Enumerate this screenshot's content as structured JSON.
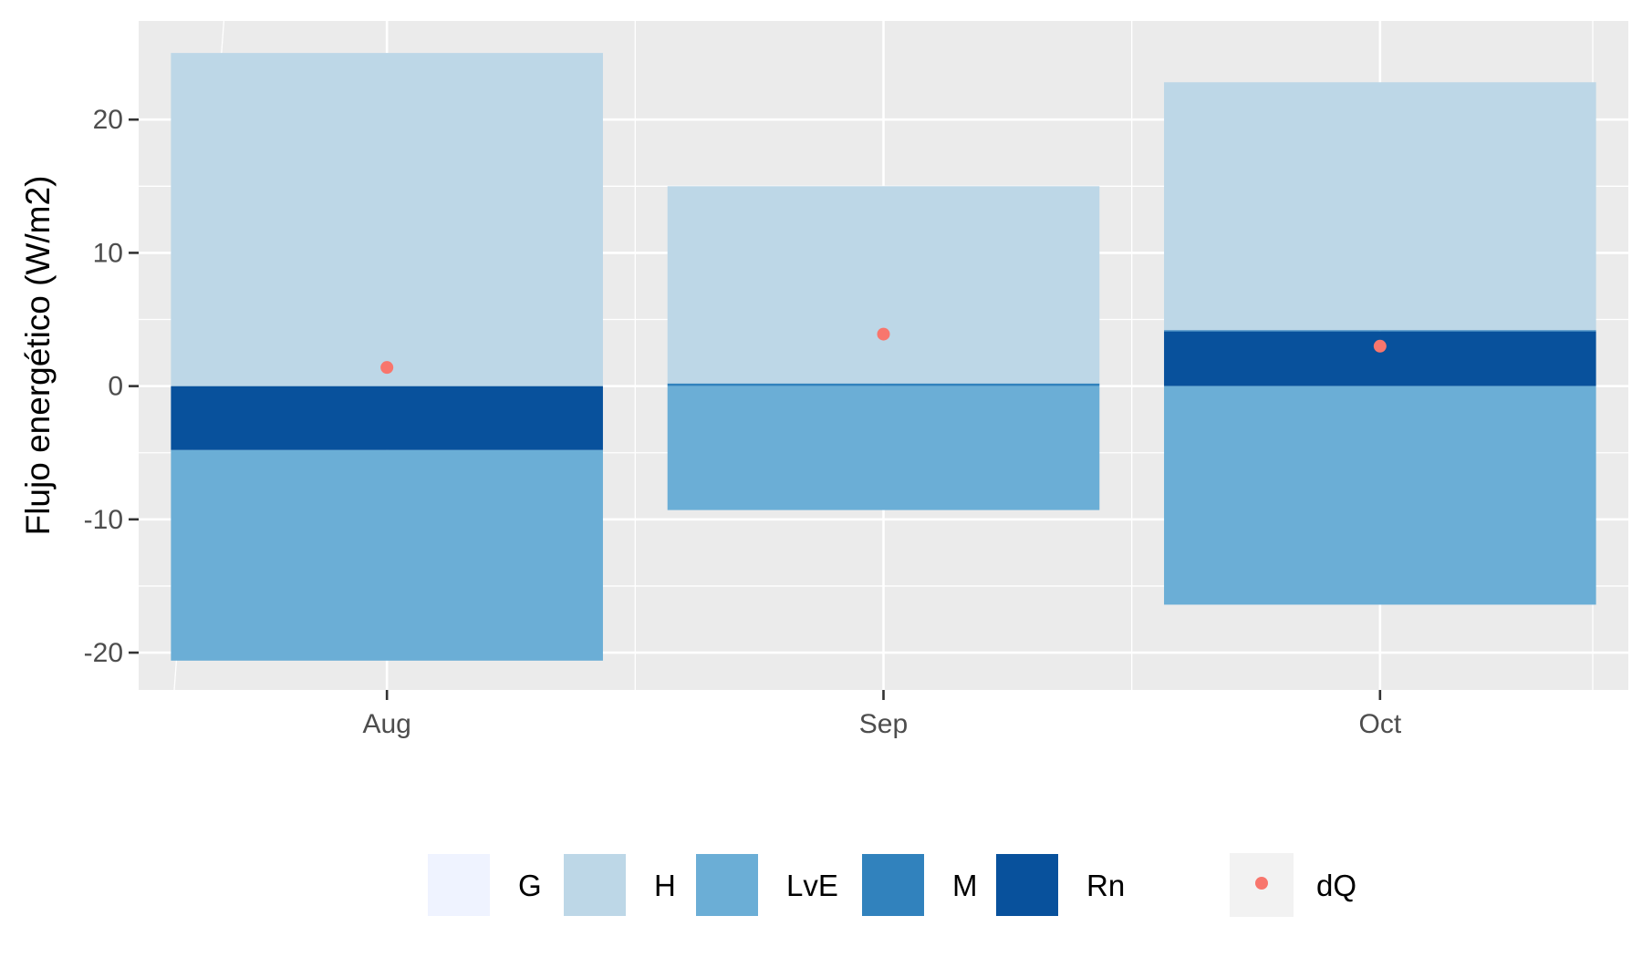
{
  "chart_data": {
    "type": "bar",
    "stacked": true,
    "title": "",
    "xlabel": "",
    "ylabel": "Flujo energético (W/m2)",
    "ylim": [
      -22.8,
      27.4
    ],
    "yticks": [
      -20,
      -10,
      0,
      10,
      20
    ],
    "categories": [
      "Aug",
      "Sep",
      "Oct"
    ],
    "grid": true,
    "legend_position": "bottom",
    "series": [
      {
        "name": "G",
        "values": [
          0,
          0,
          0
        ],
        "color": "#eff3ff"
      },
      {
        "name": "H",
        "values": [
          25.0,
          14.8,
          18.6
        ],
        "color": "#bdd7e7"
      },
      {
        "name": "LvE",
        "values": [
          -15.8,
          -9.3,
          -16.4
        ],
        "color": "#6baed6"
      },
      {
        "name": "M",
        "values": [
          0,
          0.2,
          0.1
        ],
        "color": "#3182bd"
      },
      {
        "name": "Rn",
        "values": [
          -4.8,
          0,
          4.1
        ],
        "color": "#08519c"
      }
    ],
    "points": {
      "name": "dQ",
      "values": [
        1.4,
        3.9,
        3.0
      ],
      "color": "#f8766d"
    }
  }
}
